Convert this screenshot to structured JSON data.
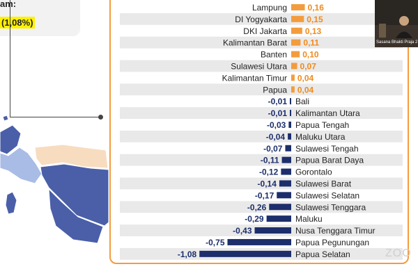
{
  "info": {
    "line1": "am:",
    "line2": "(1,08%)"
  },
  "video": {
    "caption": "Sasana Bhakti Praja 2"
  },
  "watermark": "ZOO",
  "colors": {
    "positive": "#f39c3d",
    "negative": "#1c2e6b",
    "positive_text": "#f08a1c",
    "negative_text": "#1c2e6b",
    "frame": "#f39c3d",
    "map_dark": "#4a5fa8",
    "map_light": "#a9bce6",
    "map_peach": "#f7dcc0"
  },
  "chart_data": {
    "type": "bar",
    "orientation": "horizontal",
    "unit": "%",
    "categories": [
      "Lampung",
      "DI Yogyakarta",
      "DKI Jakarta",
      "Kalimantan Barat",
      "Banten",
      "Sulawesi Utara",
      "Kalimantan Timur",
      "Papua",
      "Bali",
      "Kalimantan Utara",
      "Papua Tengah",
      "Maluku Utara",
      "Sulawesi Tengah",
      "Papua Barat Daya",
      "Gorontalo",
      "Sulawesi Barat",
      "Sulawesi Selatan",
      "Sulawesi Tenggara",
      "Maluku",
      "Nusa Tenggara Timur",
      "Papua Pegunungan",
      "Papua Selatan"
    ],
    "values": [
      0.16,
      0.15,
      0.13,
      0.11,
      0.1,
      0.07,
      0.04,
      0.04,
      -0.01,
      -0.01,
      -0.03,
      -0.04,
      -0.07,
      -0.11,
      -0.12,
      -0.14,
      -0.17,
      -0.26,
      -0.29,
      -0.43,
      -0.75,
      -1.08
    ],
    "labels": [
      "0,16",
      "0,15",
      "0,13",
      "0,11",
      "0,10",
      "0,07",
      "0,04",
      "0,04",
      "-0,01",
      "-0,01",
      "-0,03",
      "-0,04",
      "-0,07",
      "-0,11",
      "-0,12",
      "-0,14",
      "-0,17",
      "-0,26",
      "-0,29",
      "-0,43",
      "-0,75",
      "-1,08"
    ]
  }
}
